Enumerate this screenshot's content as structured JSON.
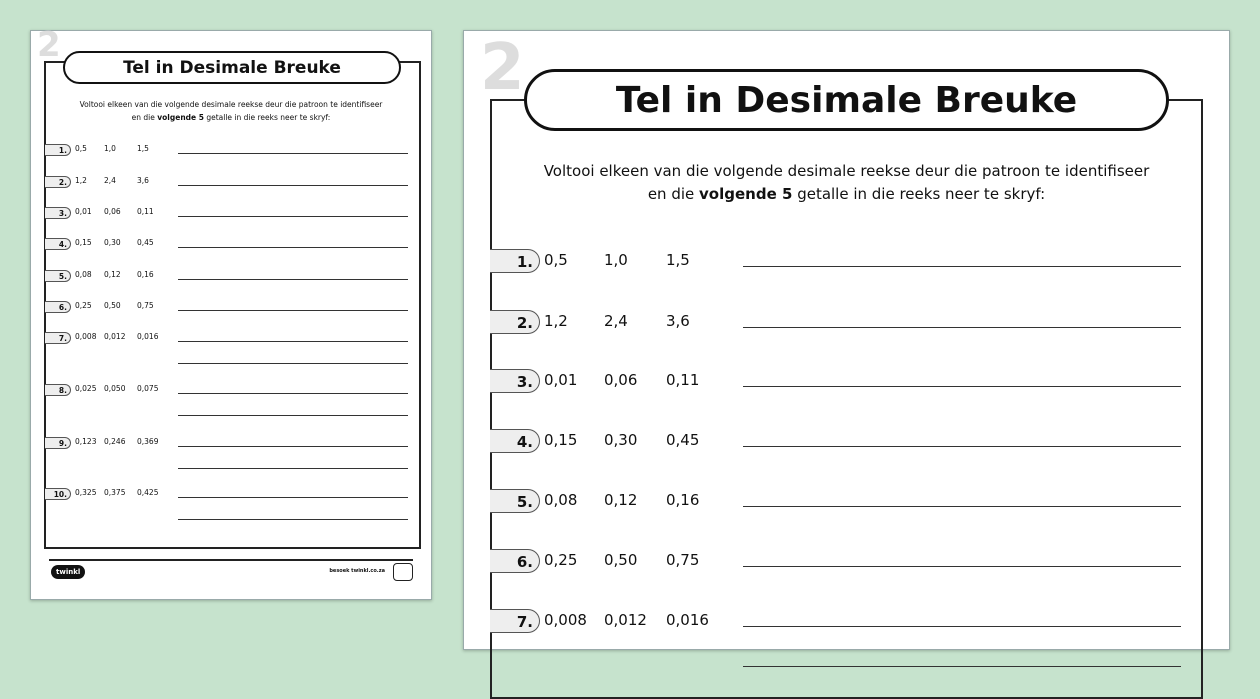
{
  "title": "Tel in Desimale Breuke",
  "instruction_line1": "Voltooi elkeen van die volgende desimale reekse deur die patroon te identifiseer",
  "instruction_line2_pre": "en die ",
  "instruction_line2_bold": "volgende 5",
  "instruction_line2_post": " getalle in die reeks neer te skryf:",
  "questions": [
    {
      "label": "1.",
      "values": [
        "0,5",
        "1,0",
        "1,5"
      ]
    },
    {
      "label": "2.",
      "values": [
        "1,2",
        "2,4",
        "3,6"
      ]
    },
    {
      "label": "3.",
      "values": [
        "0,01",
        "0,06",
        "0,11"
      ]
    },
    {
      "label": "4.",
      "values": [
        "0,15",
        "0,30",
        "0,45"
      ]
    },
    {
      "label": "5.",
      "values": [
        "0,08",
        "0,12",
        "0,16"
      ]
    },
    {
      "label": "6.",
      "values": [
        "0,25",
        "0,50",
        "0,75"
      ]
    },
    {
      "label": "7.",
      "values": [
        "0,008",
        "0,012",
        "0,016"
      ]
    },
    {
      "label": "8.",
      "values": [
        "0,025",
        "0,050",
        "0,075"
      ]
    },
    {
      "label": "9.",
      "values": [
        "0,123",
        "0,246",
        "0,369"
      ]
    },
    {
      "label": "10.",
      "values": [
        "0,325",
        "0,375",
        "0,425"
      ]
    }
  ],
  "footer": {
    "logo": "twinkl",
    "url": "besoek twinkl.co.za"
  },
  "colors": {
    "background": "#c6e3cd"
  }
}
